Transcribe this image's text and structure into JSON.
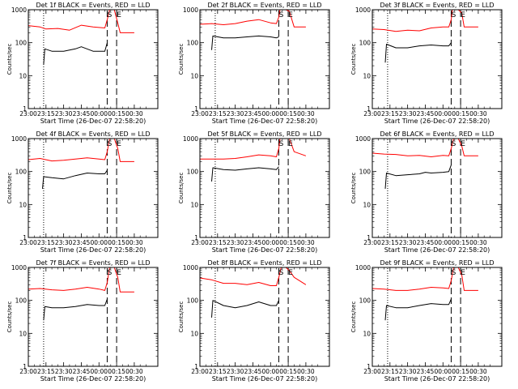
{
  "chart_data": [
    {
      "type": "line",
      "title": "Det 1f BLACK = Events, RED = LLD",
      "ylabel": "Counts/sec",
      "xlabel": "Start Time (26-Dec-07 22:58:20)",
      "x_ticks": [
        "23:00",
        "23:15",
        "23:30",
        "23:45",
        "00:00",
        "00:15",
        "00:30"
      ],
      "y_ticks": [
        "1",
        "10",
        "100",
        "1000"
      ],
      "y_scale": "log",
      "ylim": [
        1,
        1000
      ],
      "markers": [
        "S",
        "E"
      ],
      "vline_dotted": "23:13",
      "vlines_dashed": [
        "00:07",
        "00:15"
      ],
      "series": [
        {
          "color": "#ff0000",
          "x": [
            "23:00",
            "23:10",
            "23:15",
            "23:25",
            "23:35",
            "23:45",
            "23:55",
            "00:05",
            "00:07",
            "00:09",
            "00:13",
            "00:16",
            "00:18",
            "00:30"
          ],
          "values": [
            330,
            300,
            260,
            270,
            240,
            340,
            300,
            280,
            500,
            1000,
            1000,
            400,
            200,
            200
          ]
        },
        {
          "color": "#000000",
          "x": [
            "23:13",
            "23:14",
            "23:20",
            "23:30",
            "23:40",
            "23:45",
            "23:55",
            "00:05",
            "00:07"
          ],
          "values": [
            22,
            65,
            55,
            55,
            65,
            75,
            55,
            55,
            100
          ]
        }
      ]
    },
    {
      "type": "line",
      "title": "Det 2f BLACK = Events, RED = LLD",
      "ylabel": "Counts/sec",
      "xlabel": "Start Time (26-Dec-07 22:58:20)",
      "x_ticks": [
        "23:00",
        "23:15",
        "23:30",
        "23:45",
        "00:00",
        "00:15",
        "00:30"
      ],
      "y_ticks": [
        "1",
        "10",
        "100",
        "1000"
      ],
      "y_scale": "log",
      "ylim": [
        1,
        1000
      ],
      "markers": [
        "S",
        "E"
      ],
      "vline_dotted": "23:13",
      "vlines_dashed": [
        "00:07",
        "00:15"
      ],
      "series": [
        {
          "color": "#ff0000",
          "x": [
            "23:00",
            "23:10",
            "23:20",
            "23:30",
            "23:40",
            "23:50",
            "00:00",
            "00:05",
            "00:07",
            "00:08",
            "00:10",
            "00:13",
            "00:16",
            "00:20",
            "00:30"
          ],
          "values": [
            360,
            380,
            350,
            380,
            450,
            500,
            400,
            380,
            600,
            1000,
            1000,
            1000,
            900,
            300,
            300
          ]
        },
        {
          "color": "#000000",
          "x": [
            "23:10",
            "23:11",
            "23:20",
            "23:30",
            "23:40",
            "23:50",
            "00:00",
            "00:05",
            "00:07"
          ],
          "values": [
            60,
            160,
            140,
            140,
            150,
            160,
            150,
            140,
            150
          ]
        }
      ]
    },
    {
      "type": "line",
      "title": "Det 3f BLACK = Events, RED = LLD",
      "ylabel": "Counts/sec",
      "xlabel": "Start Time (26-Dec-07 22:58:20)",
      "x_ticks": [
        "23:00",
        "23:15",
        "23:30",
        "23:45",
        "00:00",
        "00:15",
        "00:30"
      ],
      "y_ticks": [
        "1",
        "10",
        "100",
        "1000"
      ],
      "y_scale": "log",
      "ylim": [
        1,
        1000
      ],
      "markers": [
        "S",
        "E"
      ],
      "vline_dotted": "23:13",
      "vlines_dashed": [
        "00:07",
        "00:15"
      ],
      "series": [
        {
          "color": "#ff0000",
          "x": [
            "23:00",
            "23:10",
            "23:20",
            "23:30",
            "23:40",
            "23:50",
            "00:00",
            "00:05",
            "00:07",
            "00:08",
            "00:13",
            "00:16",
            "00:18",
            "00:30"
          ],
          "values": [
            260,
            250,
            220,
            240,
            230,
            280,
            300,
            300,
            500,
            1000,
            1000,
            800,
            300,
            300
          ]
        },
        {
          "color": "#000000",
          "x": [
            "23:11",
            "23:12",
            "23:20",
            "23:30",
            "23:40",
            "23:50",
            "00:00",
            "00:05",
            "00:07"
          ],
          "values": [
            25,
            90,
            70,
            70,
            80,
            85,
            80,
            80,
            100
          ]
        }
      ]
    },
    {
      "type": "line",
      "title": "Det 4f BLACK = Events, RED = LLD",
      "ylabel": "Counts/sec",
      "xlabel": "Start Time (26-Dec-07 22:58:20)",
      "x_ticks": [
        "23:00",
        "23:15",
        "23:30",
        "23:45",
        "00:00",
        "00:15",
        "00:30"
      ],
      "y_ticks": [
        "1",
        "10",
        "100",
        "1000"
      ],
      "y_scale": "log",
      "ylim": [
        1,
        1000
      ],
      "markers": [
        "S",
        "E"
      ],
      "vline_dotted": "23:13",
      "vlines_dashed": [
        "00:07",
        "00:15"
      ],
      "series": [
        {
          "color": "#ff0000",
          "x": [
            "23:00",
            "23:10",
            "23:20",
            "23:30",
            "23:40",
            "23:50",
            "00:00",
            "00:05",
            "00:07",
            "00:09",
            "00:13",
            "00:16",
            "00:18",
            "00:30"
          ],
          "values": [
            230,
            250,
            210,
            220,
            240,
            260,
            240,
            230,
            400,
            1000,
            1000,
            500,
            200,
            200
          ]
        },
        {
          "color": "#000000",
          "x": [
            "23:12",
            "23:13",
            "23:20",
            "23:30",
            "23:40",
            "23:50",
            "00:00",
            "00:05",
            "00:07"
          ],
          "values": [
            30,
            70,
            65,
            60,
            75,
            90,
            85,
            85,
            110
          ]
        }
      ]
    },
    {
      "type": "line",
      "title": "Det 5f BLACK = Events, RED = LLD",
      "ylabel": "Counts/sec",
      "xlabel": "Start Time (26-Dec-07 22:58:20)",
      "x_ticks": [
        "23:00",
        "23:15",
        "23:30",
        "23:45",
        "00:00",
        "00:15",
        "00:30"
      ],
      "y_ticks": [
        "1",
        "10",
        "100",
        "1000"
      ],
      "y_scale": "log",
      "ylim": [
        1,
        1000
      ],
      "markers": [
        "S",
        "E"
      ],
      "vline_dotted": "23:13",
      "vlines_dashed": [
        "00:07",
        "00:15"
      ],
      "series": [
        {
          "color": "#ff0000",
          "x": [
            "23:00",
            "23:10",
            "23:20",
            "23:30",
            "23:40",
            "23:50",
            "00:00",
            "00:05",
            "00:07",
            "00:08",
            "00:12",
            "00:16",
            "00:20",
            "00:30"
          ],
          "values": [
            240,
            240,
            240,
            250,
            280,
            320,
            300,
            280,
            500,
            1000,
            1000,
            1000,
            400,
            300
          ]
        },
        {
          "color": "#000000",
          "x": [
            "23:10",
            "23:11",
            "23:20",
            "23:30",
            "23:40",
            "23:50",
            "00:00",
            "00:05",
            "00:07"
          ],
          "values": [
            50,
            130,
            115,
            110,
            120,
            130,
            120,
            115,
            140
          ]
        }
      ]
    },
    {
      "type": "line",
      "title": "Det 6f BLACK = Events, RED = LLD",
      "ylabel": "Counts/sec",
      "xlabel": "Start Time (26-Dec-07 22:58:20)",
      "x_ticks": [
        "23:00",
        "23:15",
        "23:30",
        "23:45",
        "00:00",
        "00:15",
        "00:30"
      ],
      "y_ticks": [
        "1",
        "10",
        "100",
        "1000"
      ],
      "y_scale": "log",
      "ylim": [
        1,
        1000
      ],
      "markers": [
        "S",
        "E"
      ],
      "vline_dotted": "23:13",
      "vlines_dashed": [
        "00:07",
        "00:15"
      ],
      "series": [
        {
          "color": "#ff0000",
          "x": [
            "23:00",
            "23:10",
            "23:20",
            "23:30",
            "23:40",
            "23:50",
            "00:00",
            "00:05",
            "00:07",
            "00:09",
            "00:13",
            "00:16",
            "00:18",
            "00:30"
          ],
          "values": [
            360,
            340,
            330,
            300,
            310,
            280,
            310,
            300,
            500,
            1000,
            1000,
            600,
            300,
            300
          ]
        },
        {
          "color": "#000000",
          "x": [
            "23:11",
            "23:12",
            "23:20",
            "23:30",
            "23:40",
            "23:45",
            "23:50",
            "00:00",
            "00:05",
            "00:07"
          ],
          "values": [
            30,
            90,
            75,
            80,
            85,
            95,
            90,
            95,
            100,
            160
          ]
        }
      ]
    },
    {
      "type": "line",
      "title": "Det 7f BLACK = Events, RED = LLD",
      "ylabel": "Counts/sec",
      "xlabel": "Start Time (26-Dec-07 22:58:20)",
      "x_ticks": [
        "23:00",
        "23:15",
        "23:30",
        "23:45",
        "00:00",
        "00:15",
        "00:30"
      ],
      "y_ticks": [
        "1",
        "10",
        "100",
        "1000"
      ],
      "y_scale": "log",
      "ylim": [
        1,
        1000
      ],
      "markers": [
        "S",
        "E"
      ],
      "vline_dotted": "23:13",
      "vlines_dashed": [
        "00:07",
        "00:15"
      ],
      "series": [
        {
          "color": "#ff0000",
          "x": [
            "23:00",
            "23:10",
            "23:20",
            "23:30",
            "23:40",
            "23:50",
            "00:00",
            "00:05",
            "00:07",
            "00:09",
            "00:13",
            "00:16",
            "00:18",
            "00:30"
          ],
          "values": [
            220,
            230,
            210,
            200,
            220,
            250,
            220,
            200,
            350,
            1000,
            1000,
            500,
            180,
            180
          ]
        },
        {
          "color": "#000000",
          "x": [
            "23:13",
            "23:14",
            "23:20",
            "23:30",
            "23:40",
            "23:50",
            "00:00",
            "00:05",
            "00:07"
          ],
          "values": [
            25,
            65,
            60,
            60,
            65,
            75,
            70,
            70,
            110
          ]
        }
      ]
    },
    {
      "type": "line",
      "title": "Det 8f BLACK = Events, RED = LLD",
      "ylabel": "Counts/sec",
      "xlabel": "Start Time (26-Dec-07 22:58:20)",
      "x_ticks": [
        "23:00",
        "23:15",
        "23:30",
        "23:45",
        "00:00",
        "00:15",
        "00:30"
      ],
      "y_ticks": [
        "1",
        "10",
        "100",
        "1000"
      ],
      "y_scale": "log",
      "ylim": [
        1,
        1000
      ],
      "markers": [
        "S",
        "E"
      ],
      "vline_dotted": "23:13",
      "vlines_dashed": [
        "00:07",
        "00:15"
      ],
      "series": [
        {
          "color": "#ff0000",
          "x": [
            "23:00",
            "23:10",
            "23:20",
            "23:30",
            "23:40",
            "23:50",
            "00:00",
            "00:05",
            "00:07",
            "00:09",
            "00:13",
            "00:16",
            "00:20",
            "00:30"
          ],
          "values": [
            480,
            420,
            330,
            330,
            300,
            350,
            280,
            280,
            500,
            1000,
            1000,
            800,
            500,
            300
          ]
        },
        {
          "color": "#000000",
          "x": [
            "23:10",
            "23:11",
            "23:20",
            "23:30",
            "23:40",
            "23:50",
            "00:00",
            "00:05",
            "00:07"
          ],
          "values": [
            30,
            100,
            70,
            60,
            70,
            90,
            70,
            70,
            100
          ]
        }
      ]
    },
    {
      "type": "line",
      "title": "Det 9f BLACK = Events, RED = LLD",
      "ylabel": "Counts/sec",
      "xlabel": "Start Time (26-Dec-07 22:58:20)",
      "x_ticks": [
        "23:00",
        "23:15",
        "23:30",
        "23:45",
        "00:00",
        "00:15",
        "00:30"
      ],
      "y_ticks": [
        "1",
        "10",
        "100",
        "1000"
      ],
      "y_scale": "log",
      "ylim": [
        1,
        1000
      ],
      "markers": [
        "S",
        "E"
      ],
      "vline_dotted": "23:13",
      "vlines_dashed": [
        "00:07",
        "00:15"
      ],
      "series": [
        {
          "color": "#ff0000",
          "x": [
            "23:00",
            "23:10",
            "23:20",
            "23:30",
            "23:40",
            "23:50",
            "00:00",
            "00:05",
            "00:07",
            "00:09",
            "00:13",
            "00:16",
            "00:18",
            "00:30"
          ],
          "values": [
            230,
            220,
            200,
            200,
            220,
            250,
            240,
            230,
            400,
            1000,
            1000,
            600,
            200,
            200
          ]
        },
        {
          "color": "#000000",
          "x": [
            "23:11",
            "23:12",
            "23:20",
            "23:30",
            "23:40",
            "23:50",
            "00:00",
            "00:05",
            "00:07"
          ],
          "values": [
            25,
            70,
            60,
            60,
            70,
            80,
            75,
            75,
            110
          ]
        }
      ]
    }
  ]
}
